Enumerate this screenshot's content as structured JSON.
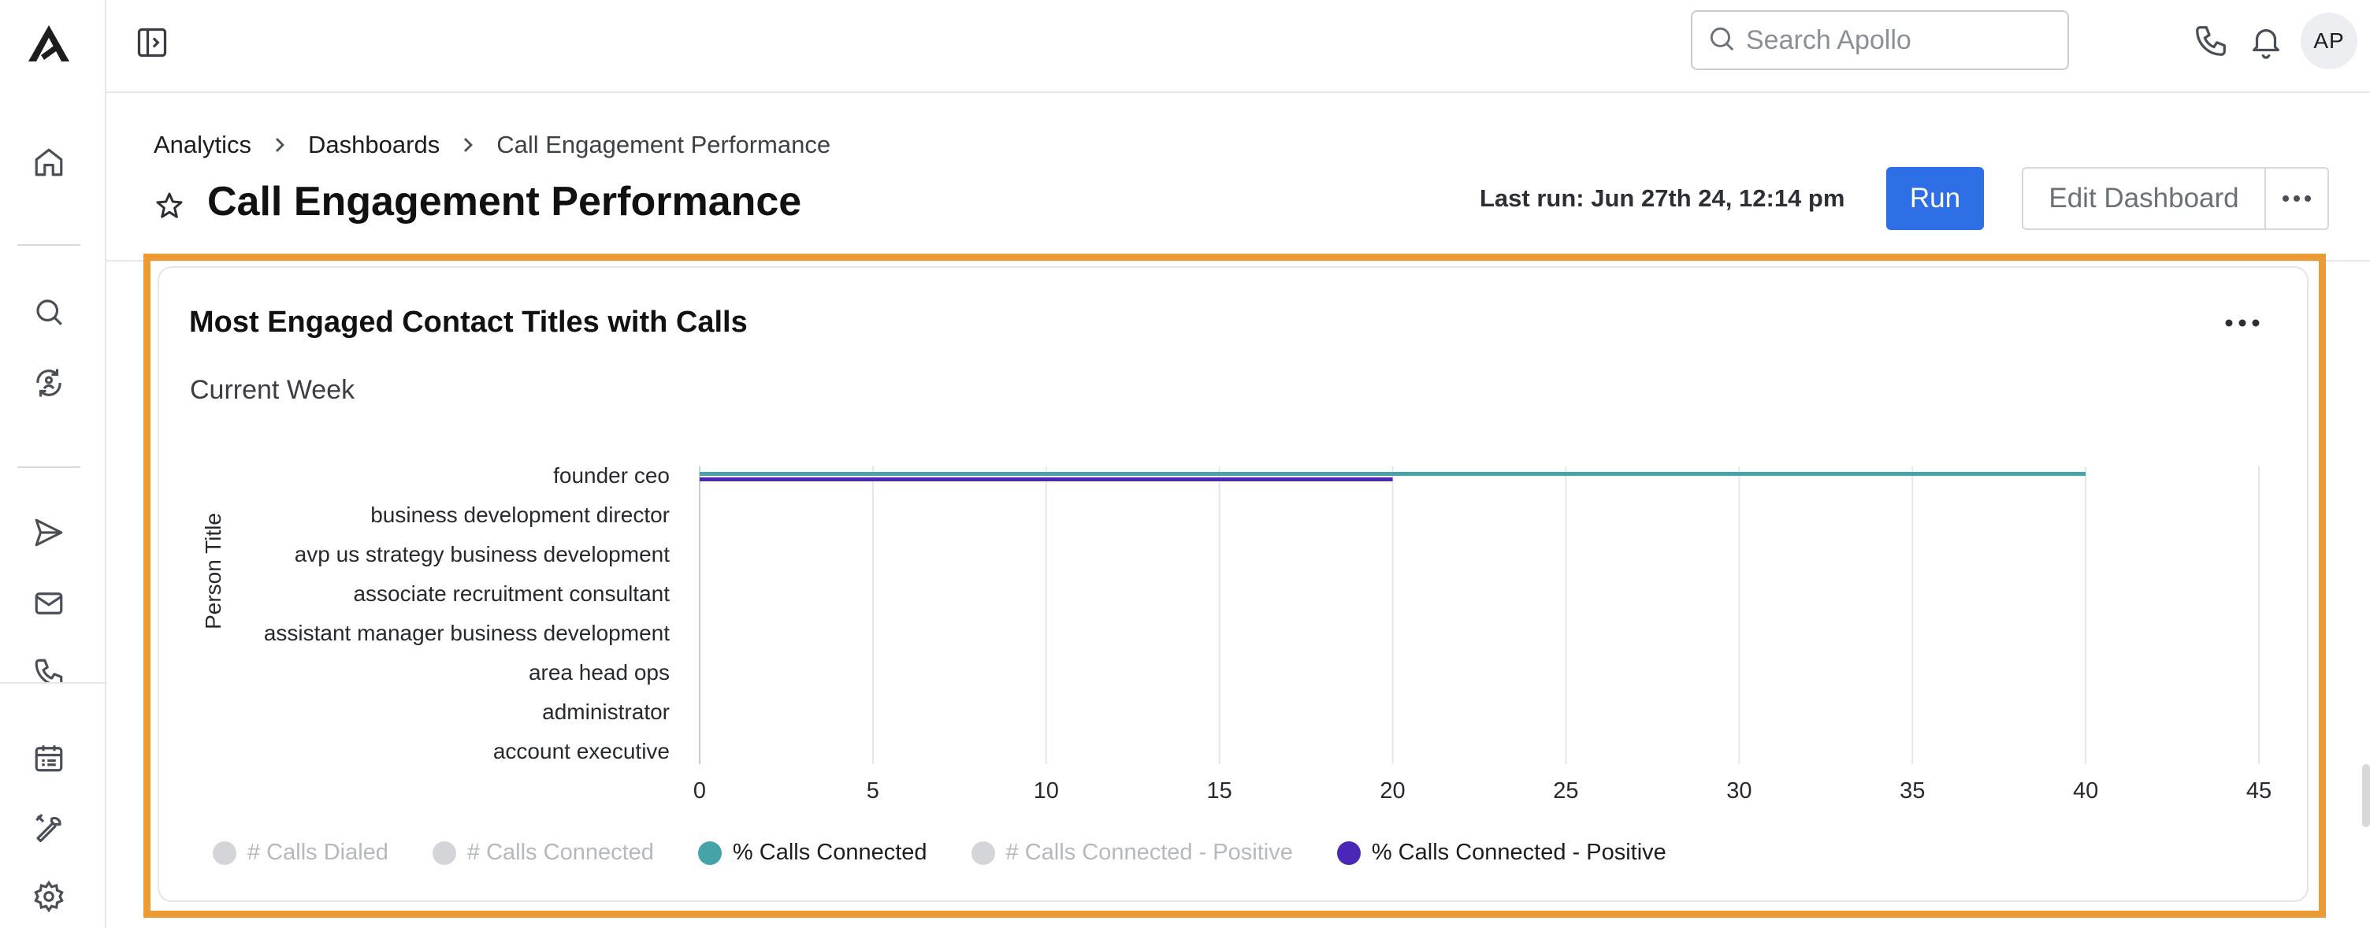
{
  "topbar": {
    "search_placeholder": "Search Apollo",
    "avatar_initials": "AP"
  },
  "breadcrumb": {
    "items": [
      "Analytics",
      "Dashboards"
    ],
    "current": "Call Engagement Performance"
  },
  "page": {
    "title": "Call Engagement Performance",
    "last_run": "Last run: Jun 27th 24, 12:14 pm",
    "run_label": "Run",
    "edit_label": "Edit Dashboard"
  },
  "card": {
    "title": "Most Engaged Contact Titles with Calls",
    "subtitle": "Current Week"
  },
  "colors": {
    "accent": "#2f6fe6",
    "highlight": "#ec9b34",
    "teal": "#46a3a7",
    "purple": "#4b27b8",
    "disabled": "#d3d5d9"
  },
  "chart_data": {
    "type": "bar",
    "orientation": "horizontal",
    "ylabel": "Person Title",
    "categories": [
      "founder ceo",
      "business development director",
      "avp us strategy business development",
      "associate recruitment consultant",
      "assistant manager business development",
      "area head ops",
      "administrator",
      "account executive"
    ],
    "xlim": [
      0,
      45
    ],
    "x_ticks": [
      0,
      5,
      10,
      15,
      20,
      25,
      30,
      35,
      40,
      45
    ],
    "grid": true,
    "legend_position": "bottom",
    "series": [
      {
        "name": "# Calls Dialed",
        "enabled": false,
        "values": [
          null,
          null,
          null,
          null,
          null,
          null,
          null,
          null
        ]
      },
      {
        "name": "# Calls Connected",
        "enabled": false,
        "values": [
          null,
          null,
          null,
          null,
          null,
          null,
          null,
          null
        ]
      },
      {
        "name": "% Calls Connected",
        "enabled": true,
        "color": "#46a3a7",
        "values": [
          40,
          null,
          null,
          null,
          null,
          null,
          null,
          null
        ]
      },
      {
        "name": "# Calls Connected - Positive",
        "enabled": false,
        "values": [
          null,
          null,
          null,
          null,
          null,
          null,
          null,
          null
        ]
      },
      {
        "name": "% Calls Connected - Positive",
        "enabled": true,
        "color": "#4b27b8",
        "values": [
          20,
          null,
          null,
          null,
          null,
          null,
          null,
          null
        ]
      }
    ]
  }
}
